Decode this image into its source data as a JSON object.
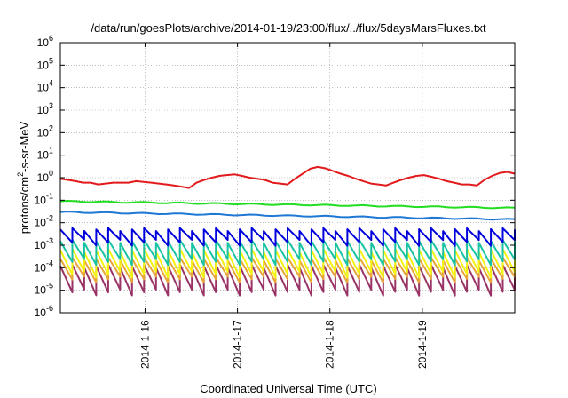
{
  "chart_data": {
    "type": "line",
    "title": "/data/run/goesPlots/archive/2014-01-19/23:00/flux/../flux/5daysMarsFluxes.txt",
    "xlabel": "Coordinated Universal Time (UTC)",
    "ylabel_parts": {
      "prefix": "protons/cm",
      "sup": "2",
      "suffix": "-s-sr-MeV"
    },
    "x_range": [
      "2014-01-15T02:00",
      "2014-01-20T00:00"
    ],
    "x_ticks": [
      "2014-1-16",
      "2014-1-17",
      "2014-1-18",
      "2014-1-19"
    ],
    "y_scale": "log",
    "ylim": [
      1e-06,
      1000000.0
    ],
    "y_ticks": [
      {
        "base": "10",
        "exp": "-6"
      },
      {
        "base": "10",
        "exp": "-5"
      },
      {
        "base": "10",
        "exp": "-4"
      },
      {
        "base": "10",
        "exp": "-3"
      },
      {
        "base": "10",
        "exp": "-2"
      },
      {
        "base": "10",
        "exp": "-1"
      },
      {
        "base": "10",
        "exp": "0"
      },
      {
        "base": "10",
        "exp": "1"
      },
      {
        "base": "10",
        "exp": "2"
      },
      {
        "base": "10",
        "exp": "3"
      },
      {
        "base": "10",
        "exp": "4"
      },
      {
        "base": "10",
        "exp": "5"
      },
      {
        "base": "10",
        "exp": "6"
      }
    ],
    "grid": true,
    "series": [
      {
        "color": "#e31a1c",
        "sawtooth": false,
        "envelope": [
          {
            "x": "2014-01-15T02:00",
            "y": 1.5
          },
          {
            "x": "2014-01-15T05:00",
            "y": 0.9
          },
          {
            "x": "2014-01-15T12:00",
            "y": 0.6
          },
          {
            "x": "2014-01-15T18:00",
            "y": 0.5
          },
          {
            "x": "2014-01-16T00:00",
            "y": 0.7
          },
          {
            "x": "2014-01-16T08:00",
            "y": 0.5
          },
          {
            "x": "2014-01-16T12:00",
            "y": 0.35
          },
          {
            "x": "2014-01-16T18:00",
            "y": 0.9
          },
          {
            "x": "2014-01-16T23:00",
            "y": 1.4
          },
          {
            "x": "2014-01-17T06:00",
            "y": 0.8
          },
          {
            "x": "2014-01-17T12:00",
            "y": 0.5
          },
          {
            "x": "2014-01-17T18:00",
            "y": 1.5
          },
          {
            "x": "2014-01-17T21:00",
            "y": 3.0
          },
          {
            "x": "2014-01-18T02:00",
            "y": 2.0
          },
          {
            "x": "2014-01-18T06:00",
            "y": 0.9
          },
          {
            "x": "2014-01-18T12:00",
            "y": 0.45
          },
          {
            "x": "2014-01-18T18:00",
            "y": 1.0
          },
          {
            "x": "2014-01-19T00:00",
            "y": 1.3
          },
          {
            "x": "2014-01-19T08:00",
            "y": 0.6
          },
          {
            "x": "2014-01-19T14:00",
            "y": 0.45
          },
          {
            "x": "2014-01-19T20:00",
            "y": 1.8
          },
          {
            "x": "2014-01-20T00:00",
            "y": 1.4
          }
        ],
        "values": [
          0.9,
          0.8,
          0.7,
          0.6,
          0.6,
          0.5,
          0.55,
          0.6,
          0.6,
          0.6,
          0.7,
          0.65,
          0.6,
          0.55,
          0.5,
          0.45,
          0.4,
          0.35,
          0.6,
          0.8,
          1.0,
          1.2,
          1.3,
          1.4,
          1.2,
          1.0,
          0.9,
          0.8,
          0.6,
          0.55,
          0.5,
          0.9,
          1.5,
          2.5,
          3.0,
          2.6,
          2.0,
          1.5,
          1.2,
          0.9,
          0.7,
          0.55,
          0.5,
          0.45,
          0.6,
          0.8,
          1.0,
          1.2,
          1.3,
          1.1,
          0.9,
          0.7,
          0.6,
          0.5,
          0.5,
          0.45,
          0.8,
          1.2,
          1.6,
          1.8,
          1.5
        ]
      },
      {
        "color": "#22dd22",
        "sawtooth": false,
        "values_start": 0.09,
        "values_end": 0.045
      },
      {
        "color": "#1f78d4",
        "sawtooth": false,
        "values_start": 0.03,
        "values_end": 0.014
      },
      {
        "color": "#0000dd",
        "sawtooth": true,
        "low": 0.0013,
        "high": 0.005
      },
      {
        "color": "#17c3a2",
        "sawtooth": true,
        "low": 0.00018,
        "high": 0.0015
      },
      {
        "color": "#f4f40f",
        "sawtooth": true,
        "low": 5e-05,
        "high": 0.0006
      },
      {
        "color": "#e8a63a",
        "sawtooth": true,
        "low": 3e-05,
        "high": 0.00025
      },
      {
        "color": "#993366",
        "sawtooth": true,
        "low": 8e-06,
        "high": 0.00012
      }
    ]
  }
}
